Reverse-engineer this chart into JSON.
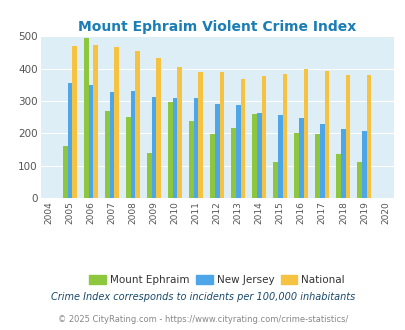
{
  "title": "Mount Ephraim Violent Crime Index",
  "years": [
    2004,
    2005,
    2006,
    2007,
    2008,
    2009,
    2010,
    2011,
    2012,
    2013,
    2014,
    2015,
    2016,
    2017,
    2018,
    2019,
    2020
  ],
  "mount_ephraim": [
    null,
    160,
    495,
    270,
    252,
    140,
    297,
    237,
    197,
    215,
    260,
    112,
    200,
    198,
    135,
    112,
    null
  ],
  "new_jersey": [
    null,
    355,
    350,
    328,
    330,
    312,
    308,
    310,
    292,
    288,
    262,
    256,
    248,
    230,
    212,
    207,
    null
  ],
  "national": [
    null,
    470,
    473,
    468,
    456,
    432,
    405,
    389,
    389,
    368,
    378,
    384,
    399,
    394,
    381,
    380,
    null
  ],
  "colors": {
    "mount_ephraim": "#8dc63f",
    "new_jersey": "#4da6e8",
    "national": "#f5c242"
  },
  "background_color": "#ddeef6",
  "ylim": [
    0,
    500
  ],
  "yticks": [
    0,
    100,
    200,
    300,
    400,
    500
  ],
  "legend_labels": [
    "Mount Ephraim",
    "New Jersey",
    "National"
  ],
  "footnote1": "Crime Index corresponds to incidents per 100,000 inhabitants",
  "footnote2": "© 2025 CityRating.com - https://www.cityrating.com/crime-statistics/",
  "title_color": "#1a7db5",
  "footnote1_color": "#1a4a6b",
  "footnote2_color": "#888888",
  "footnote2_link_color": "#4da6e8"
}
